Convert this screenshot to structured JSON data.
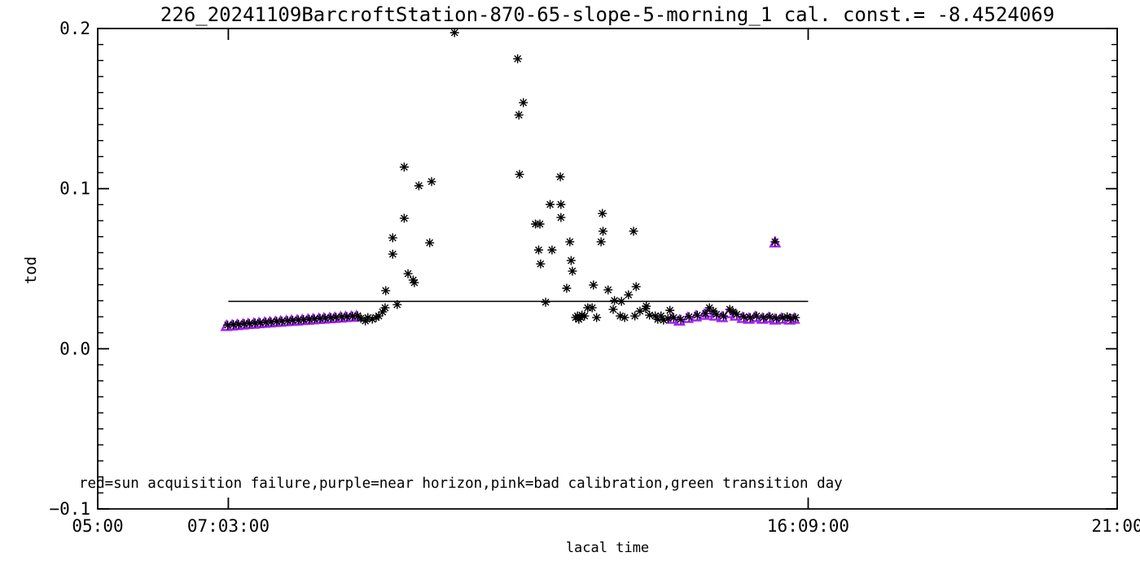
{
  "chart_data": {
    "type": "scatter",
    "title": "226_20241109BarcroftStation-870-65-slope-5-morning_1 cal. const.= -8.4524069",
    "xlabel": "lacal time",
    "ylabel": "tod",
    "annotation": "red=sun acquisition failure,purple=near horizon,pink=bad calibration,green transition day",
    "grid": false,
    "legend_position": "bottom-inside",
    "x_axis": {
      "unit": "hours-local-time",
      "range_hours": [
        5,
        21
      ],
      "ticks": [
        {
          "t": 5.0,
          "label": "05:00"
        },
        {
          "t": 7.05,
          "label": "07:03:00"
        },
        {
          "t": 16.15,
          "label": "16:09:00"
        },
        {
          "t": 21.0,
          "label": "21:00"
        }
      ],
      "minor_ticks": false
    },
    "y_axis": {
      "range": [
        -0.1,
        0.2
      ],
      "ticks": [
        {
          "v": -0.1,
          "label": "−0.1"
        },
        {
          "v": 0.0,
          "label": "0.0"
        },
        {
          "v": 0.1,
          "label": "0.1"
        },
        {
          "v": 0.2,
          "label": "0.2"
        }
      ],
      "minor_step": 0.01
    },
    "fit_line": {
      "tod": 0.0296,
      "t_start": 7.05,
      "t_end": 16.15,
      "color": "#000000"
    },
    "flag_colors": {
      "good": "#000000",
      "near_horizon_purple": "#A020F0"
    },
    "series": [
      {
        "name": "near horizon (purple triangles)",
        "marker": "triangle",
        "color": "#A020F0",
        "points": [
          [
            7.02,
            0.014
          ],
          [
            7.11,
            0.0143
          ],
          [
            7.19,
            0.0146
          ],
          [
            7.28,
            0.0149
          ],
          [
            7.36,
            0.0152
          ],
          [
            7.45,
            0.0154
          ],
          [
            7.53,
            0.0157
          ],
          [
            7.62,
            0.016
          ],
          [
            7.7,
            0.0162
          ],
          [
            7.79,
            0.0165
          ],
          [
            7.87,
            0.0167
          ],
          [
            7.96,
            0.017
          ],
          [
            8.04,
            0.0172
          ],
          [
            8.13,
            0.0174
          ],
          [
            8.21,
            0.0177
          ],
          [
            8.3,
            0.0179
          ],
          [
            8.38,
            0.0181
          ],
          [
            8.47,
            0.0184
          ],
          [
            8.55,
            0.0186
          ],
          [
            8.64,
            0.0188
          ],
          [
            8.72,
            0.019
          ],
          [
            8.81,
            0.0193
          ],
          [
            8.89,
            0.0195
          ],
          [
            8.98,
            0.0197
          ],
          [
            9.06,
            0.02
          ],
          [
            14.02,
            0.0185
          ],
          [
            14.13,
            0.0174
          ],
          [
            14.26,
            0.019
          ],
          [
            14.39,
            0.02
          ],
          [
            14.52,
            0.021
          ],
          [
            14.58,
            0.0225
          ],
          [
            14.69,
            0.0205
          ],
          [
            14.8,
            0.0195
          ],
          [
            14.9,
            0.022
          ],
          [
            15.01,
            0.0205
          ],
          [
            15.12,
            0.019
          ],
          [
            15.22,
            0.0185
          ],
          [
            15.32,
            0.0195
          ],
          [
            15.43,
            0.0185
          ],
          [
            15.53,
            0.019
          ],
          [
            15.63,
            0.018
          ],
          [
            15.73,
            0.0185
          ],
          [
            15.86,
            0.018
          ],
          [
            15.93,
            0.0185
          ],
          [
            15.63,
            0.0662
          ]
        ]
      },
      {
        "name": "observations (black asterisks)",
        "marker": "asterisk",
        "color": "#000000",
        "points": [
          [
            7.04,
            0.0148
          ],
          [
            7.13,
            0.0151
          ],
          [
            7.21,
            0.0153
          ],
          [
            7.3,
            0.0156
          ],
          [
            7.38,
            0.0158
          ],
          [
            7.47,
            0.0161
          ],
          [
            7.55,
            0.0163
          ],
          [
            7.64,
            0.0166
          ],
          [
            7.72,
            0.0168
          ],
          [
            7.81,
            0.0171
          ],
          [
            7.89,
            0.0173
          ],
          [
            7.98,
            0.0175
          ],
          [
            8.06,
            0.0178
          ],
          [
            8.15,
            0.018
          ],
          [
            8.23,
            0.0182
          ],
          [
            8.32,
            0.0185
          ],
          [
            8.4,
            0.0187
          ],
          [
            8.49,
            0.019
          ],
          [
            8.57,
            0.0192
          ],
          [
            8.66,
            0.0194
          ],
          [
            8.74,
            0.0197
          ],
          [
            8.83,
            0.0199
          ],
          [
            8.91,
            0.0201
          ],
          [
            9.0,
            0.0204
          ],
          [
            9.08,
            0.0206
          ],
          [
            9.13,
            0.019
          ],
          [
            9.2,
            0.0174
          ],
          [
            9.24,
            0.0195
          ],
          [
            9.31,
            0.0185
          ],
          [
            9.37,
            0.0195
          ],
          [
            9.41,
            0.0205
          ],
          [
            9.47,
            0.023
          ],
          [
            9.51,
            0.0256
          ],
          [
            9.52,
            0.0363
          ],
          [
            9.7,
            0.0276
          ],
          [
            9.63,
            0.0591
          ],
          [
            9.63,
            0.0693
          ],
          [
            9.81,
            0.0815
          ],
          [
            9.81,
            0.1135
          ],
          [
            9.87,
            0.0469
          ],
          [
            9.95,
            0.0429
          ],
          [
            9.97,
            0.0413
          ],
          [
            10.04,
            0.1018
          ],
          [
            10.21,
            0.0662
          ],
          [
            10.24,
            0.1044
          ],
          [
            10.6,
            0.1974
          ],
          [
            11.59,
            0.1811
          ],
          [
            11.68,
            0.1537
          ],
          [
            11.61,
            0.146
          ],
          [
            11.62,
            0.1089
          ],
          [
            12.26,
            0.1074
          ],
          [
            12.1,
            0.0901
          ],
          [
            12.27,
            0.0901
          ],
          [
            12.27,
            0.082
          ],
          [
            11.87,
            0.0779
          ],
          [
            11.94,
            0.0779
          ],
          [
            12.92,
            0.0845
          ],
          [
            12.93,
            0.0734
          ],
          [
            13.41,
            0.0734
          ],
          [
            12.41,
            0.0668
          ],
          [
            12.9,
            0.0668
          ],
          [
            11.92,
            0.0617
          ],
          [
            12.13,
            0.0617
          ],
          [
            11.95,
            0.053
          ],
          [
            12.43,
            0.0551
          ],
          [
            12.45,
            0.0485
          ],
          [
            12.36,
            0.0378
          ],
          [
            12.78,
            0.0398
          ],
          [
            13.01,
            0.0368
          ],
          [
            13.45,
            0.0388
          ],
          [
            12.03,
            0.0291
          ],
          [
            13.33,
            0.0337
          ],
          [
            13.11,
            0.0301
          ],
          [
            13.22,
            0.0296
          ],
          [
            13.09,
            0.0246
          ],
          [
            12.69,
            0.0256
          ],
          [
            12.76,
            0.0256
          ],
          [
            12.53,
            0.0205
          ],
          [
            12.58,
            0.0195
          ],
          [
            12.6,
            0.021
          ],
          [
            12.64,
            0.0205
          ],
          [
            12.55,
            0.0184
          ],
          [
            12.5,
            0.0195
          ],
          [
            12.83,
            0.0195
          ],
          [
            13.2,
            0.0205
          ],
          [
            13.27,
            0.0195
          ],
          [
            13.43,
            0.0205
          ],
          [
            13.51,
            0.0235
          ],
          [
            13.6,
            0.0251
          ],
          [
            13.66,
            0.021
          ],
          [
            13.75,
            0.0205
          ],
          [
            13.79,
            0.0184
          ],
          [
            13.61,
            0.0266
          ],
          [
            13.98,
            0.024
          ],
          [
            13.88,
            0.0179
          ],
          [
            13.84,
            0.0205
          ],
          [
            13.95,
            0.019
          ],
          [
            14.04,
            0.0195
          ],
          [
            14.15,
            0.0184
          ],
          [
            14.28,
            0.02
          ],
          [
            14.41,
            0.021
          ],
          [
            14.54,
            0.022
          ],
          [
            14.6,
            0.0256
          ],
          [
            14.66,
            0.0235
          ],
          [
            14.71,
            0.0215
          ],
          [
            14.82,
            0.0205
          ],
          [
            14.92,
            0.0246
          ],
          [
            14.97,
            0.023
          ],
          [
            15.03,
            0.0215
          ],
          [
            15.14,
            0.02
          ],
          [
            15.24,
            0.0195
          ],
          [
            15.34,
            0.0205
          ],
          [
            15.45,
            0.0195
          ],
          [
            15.55,
            0.02
          ],
          [
            15.65,
            0.019
          ],
          [
            15.75,
            0.0195
          ],
          [
            15.82,
            0.02
          ],
          [
            15.88,
            0.019
          ],
          [
            15.95,
            0.0195
          ],
          [
            15.63,
            0.0668
          ]
        ]
      }
    ]
  }
}
